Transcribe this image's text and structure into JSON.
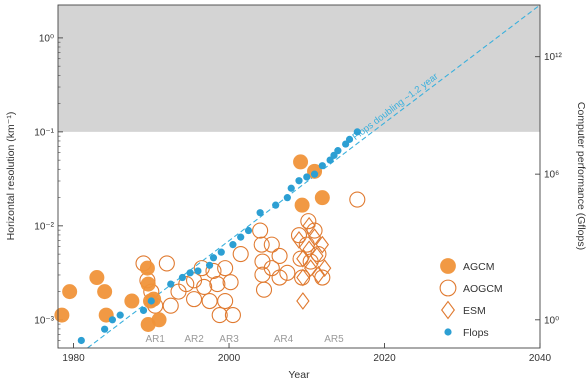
{
  "chart_data": {
    "type": "scatter",
    "title": "",
    "xlabel": "Year",
    "ylabel": "Horizontal resolution (km⁻¹)",
    "y2label": "Computer performance (Gflops)",
    "xlim": [
      1978,
      2040
    ],
    "ylim_log10": [
      -3.3,
      0.35
    ],
    "x_ticks": [
      1980,
      2000,
      2020,
      2040
    ],
    "y_ticks": [
      {
        "exp": 0,
        "label": "10⁰"
      },
      {
        "exp": -1,
        "label": "10⁻¹"
      },
      {
        "exp": -2,
        "label": "10⁻²"
      },
      {
        "exp": -3,
        "label": "10⁻³"
      }
    ],
    "y2_ticks": [
      {
        "exp": -0.2,
        "label": "10¹²"
      },
      {
        "exp": -1.45,
        "label": "10⁶"
      },
      {
        "exp": -3.0,
        "label": "10⁰"
      }
    ],
    "shaded_region": {
      "y_from_exp": -1,
      "y_to_exp": 0.35,
      "color": "#d4d4d4"
    },
    "ar_labels": [
      {
        "text": "AR1",
        "x": 1990.5
      },
      {
        "text": "AR2",
        "x": 1995.5
      },
      {
        "text": "AR3",
        "x": 2000
      },
      {
        "text": "AR4",
        "x": 2007
      },
      {
        "text": "AR5",
        "x": 2013.5
      }
    ],
    "trend": {
      "label": "Flops doubling ~1.2 year",
      "from": [
        1981,
        -3.35
      ],
      "to": [
        2040,
        0.35
      ],
      "label_x": 2016,
      "color": "#3ab0dd"
    },
    "legend": {
      "placement": "bottom-right"
    },
    "series": [
      {
        "name": "AGCM",
        "marker": "filled-circle",
        "color": "#f0943a",
        "points": [
          [
            1978.5,
            -2.95
          ],
          [
            1979.5,
            -2.7
          ],
          [
            1983,
            -2.55
          ],
          [
            1984,
            -2.7
          ],
          [
            1984.2,
            -2.95
          ],
          [
            1987.5,
            -2.8
          ],
          [
            1989.5,
            -2.45
          ],
          [
            1989.6,
            -2.62
          ],
          [
            1989.9,
            -2.8
          ],
          [
            1989.6,
            -3.05
          ],
          [
            1990.3,
            -2.78
          ],
          [
            1991,
            -3.0
          ],
          [
            2009.2,
            -1.32
          ],
          [
            2009.4,
            -1.78
          ],
          [
            2011,
            -1.42
          ],
          [
            2012,
            -1.7
          ]
        ]
      },
      {
        "name": "AOGCM",
        "marker": "open-circle",
        "color": "#e07a30",
        "points": [
          [
            1989,
            -2.4
          ],
          [
            1989.5,
            -2.58
          ],
          [
            1990,
            -2.7
          ],
          [
            1990.5,
            -2.85
          ],
          [
            1992,
            -2.4
          ],
          [
            1992.5,
            -2.85
          ],
          [
            1993.5,
            -2.7
          ],
          [
            1994.5,
            -2.62
          ],
          [
            1995.5,
            -2.58
          ],
          [
            1995.5,
            -2.78
          ],
          [
            1996.5,
            -2.45
          ],
          [
            1996.8,
            -2.65
          ],
          [
            1997.5,
            -2.8
          ],
          [
            1998,
            -2.48
          ],
          [
            1998.5,
            -2.62
          ],
          [
            1998.8,
            -2.95
          ],
          [
            1999.5,
            -2.45
          ],
          [
            1999.5,
            -2.8
          ],
          [
            2000.2,
            -2.6
          ],
          [
            2000.5,
            -2.95
          ],
          [
            2001.5,
            -2.3
          ],
          [
            2004,
            -2.05
          ],
          [
            2004.2,
            -2.2
          ],
          [
            2004.3,
            -2.38
          ],
          [
            2004.3,
            -2.52
          ],
          [
            2004.5,
            -2.68
          ],
          [
            2005.5,
            -2.2
          ],
          [
            2005.5,
            -2.45
          ],
          [
            2006.5,
            -2.32
          ],
          [
            2006.5,
            -2.55
          ],
          [
            2007.5,
            -2.5
          ],
          [
            2009,
            -2.1
          ],
          [
            2009.2,
            -2.35
          ],
          [
            2009.4,
            -2.55
          ],
          [
            2010,
            -2.2
          ],
          [
            2010.2,
            -1.95
          ],
          [
            2010.5,
            -2.38
          ],
          [
            2011,
            -2.05
          ],
          [
            2011.5,
            -2.3
          ],
          [
            2012,
            -2.55
          ],
          [
            2016.5,
            -1.72
          ]
        ]
      },
      {
        "name": "ESM",
        "marker": "open-diamond",
        "color": "#e07a30",
        "points": [
          [
            2009,
            -2.15
          ],
          [
            2009.5,
            -2.35
          ],
          [
            2009.5,
            -2.55
          ],
          [
            2009.5,
            -2.8
          ],
          [
            2010.3,
            -2.0
          ],
          [
            2010.3,
            -2.25
          ],
          [
            2010.5,
            -2.45
          ],
          [
            2011,
            -2.12
          ],
          [
            2011.3,
            -2.32
          ],
          [
            2011.5,
            -2.52
          ],
          [
            2012,
            -2.2
          ],
          [
            2012.3,
            -2.45
          ]
        ]
      },
      {
        "name": "Flops",
        "marker": "small-filled-circle",
        "color": "#2c9fd3",
        "points": [
          [
            1981,
            -3.22
          ],
          [
            1984,
            -3.1
          ],
          [
            1985,
            -3.0
          ],
          [
            1986,
            -2.95
          ],
          [
            1989,
            -2.9
          ],
          [
            1990,
            -2.8
          ],
          [
            1992.5,
            -2.62
          ],
          [
            1994,
            -2.55
          ],
          [
            1995,
            -2.5
          ],
          [
            1996,
            -2.48
          ],
          [
            1997.5,
            -2.42
          ],
          [
            1998,
            -2.34
          ],
          [
            1999,
            -2.28
          ],
          [
            2000.5,
            -2.2
          ],
          [
            2001.5,
            -2.12
          ],
          [
            2002.5,
            -2.05
          ],
          [
            2004,
            -1.86
          ],
          [
            2006,
            -1.78
          ],
          [
            2007.5,
            -1.7
          ],
          [
            2008,
            -1.6
          ],
          [
            2009,
            -1.52
          ],
          [
            2010,
            -1.48
          ],
          [
            2011,
            -1.45
          ],
          [
            2012,
            -1.36
          ],
          [
            2013,
            -1.3
          ],
          [
            2013.5,
            -1.25
          ],
          [
            2014,
            -1.2
          ],
          [
            2015,
            -1.13
          ],
          [
            2015.5,
            -1.08
          ],
          [
            2016.5,
            -1.0
          ]
        ]
      }
    ]
  }
}
